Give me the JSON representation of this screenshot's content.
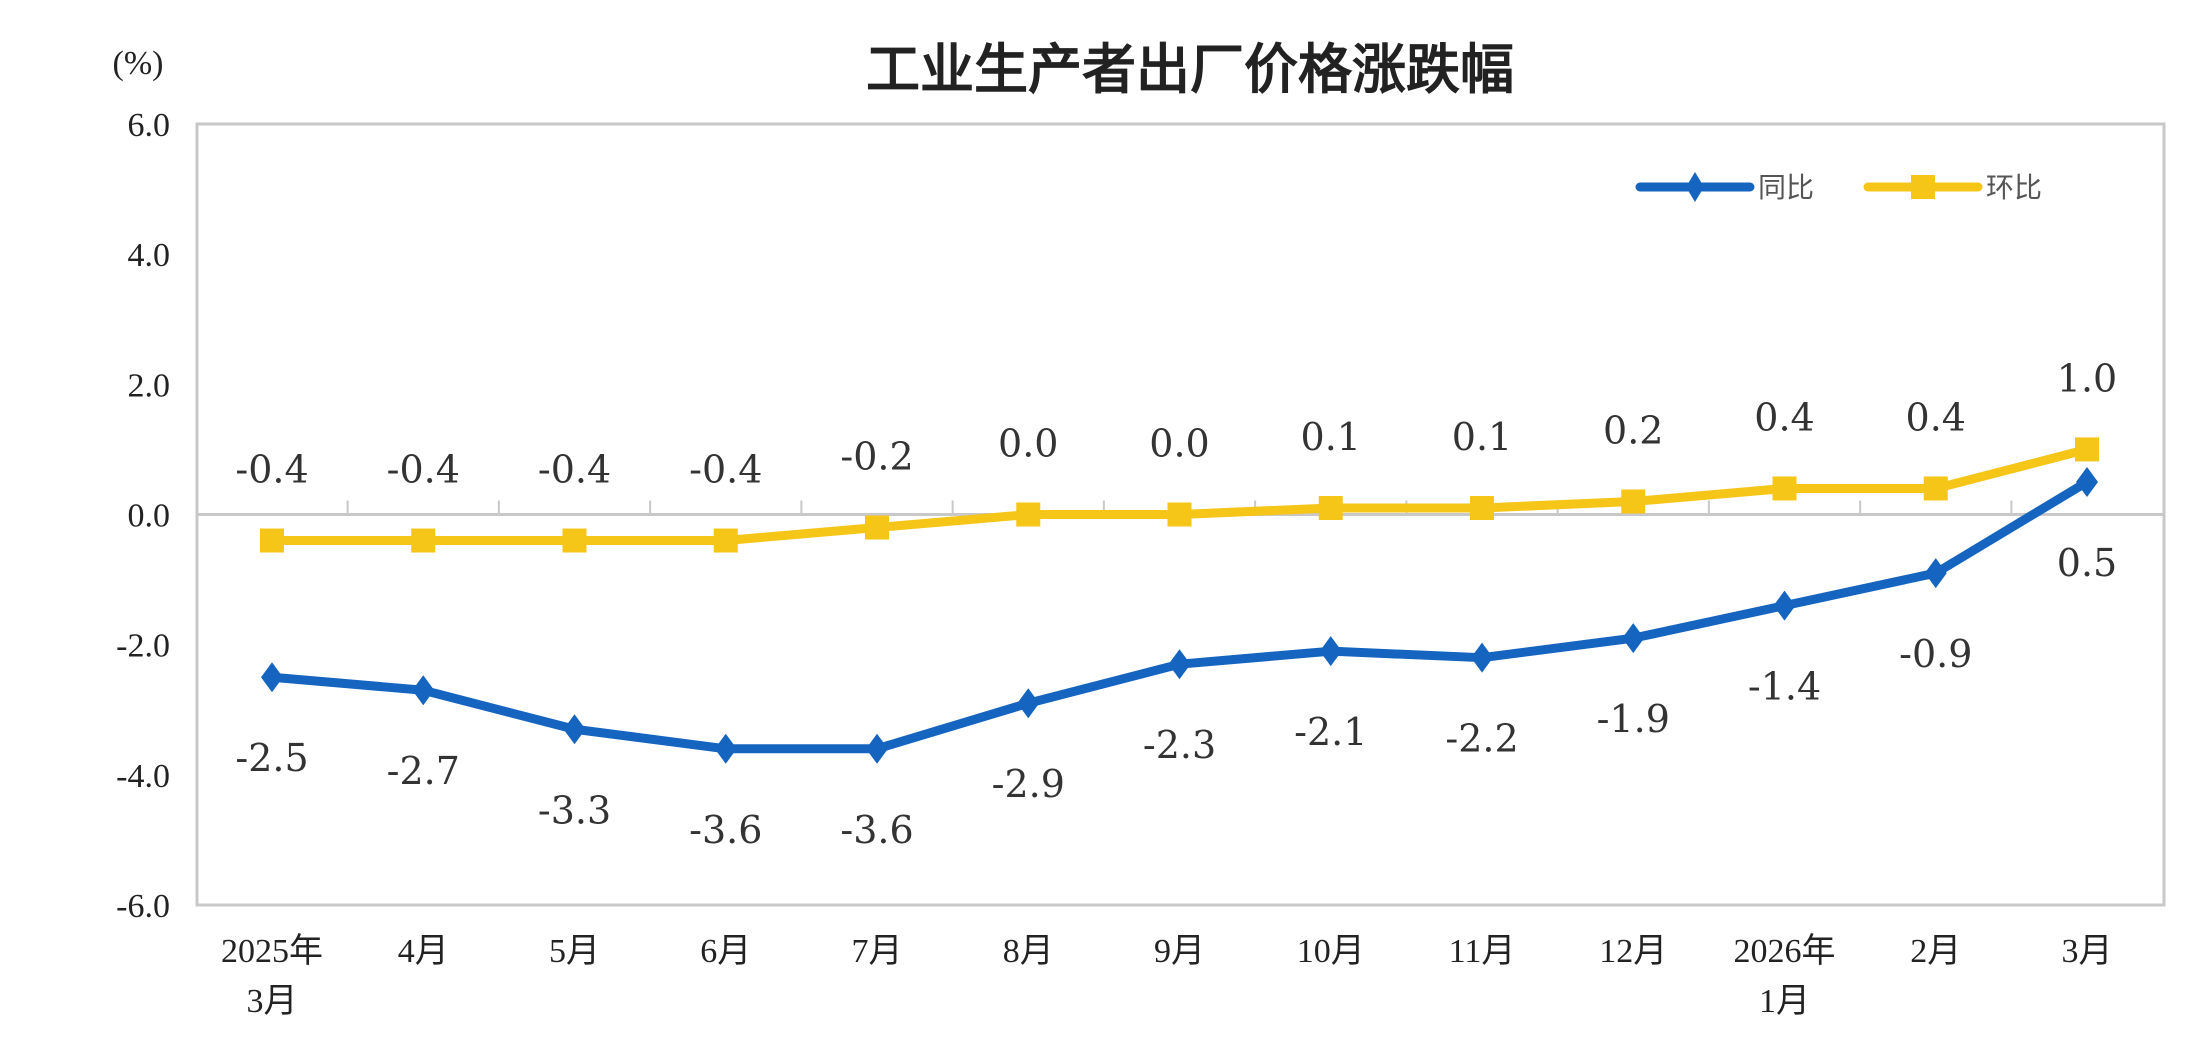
{
  "chart_data": {
    "type": "line",
    "title": "工业生产者出厂价格涨跌幅",
    "ylabel": "(%)",
    "xlabel": "",
    "ylim": [
      -6.0,
      6.0
    ],
    "yticks": [
      "6.0",
      "4.0",
      "2.0",
      "0.0",
      "-2.0",
      "-4.0",
      "-6.0"
    ],
    "ytick_values": [
      6,
      4,
      2,
      0,
      -2,
      -4,
      -6
    ],
    "grid": false,
    "legend_position": "top-right",
    "categories": [
      [
        "2025年",
        "3月"
      ],
      [
        "4月"
      ],
      [
        "5月"
      ],
      [
        "6月"
      ],
      [
        "7月"
      ],
      [
        "8月"
      ],
      [
        "9月"
      ],
      [
        "10月"
      ],
      [
        "11月"
      ],
      [
        "12月"
      ],
      [
        "2026年",
        "1月"
      ],
      [
        "2月"
      ],
      [
        "3月"
      ]
    ],
    "series": [
      {
        "name": "同比",
        "color": "#1565c0",
        "marker": "diamond",
        "values": [
          -2.5,
          -2.7,
          -3.3,
          -3.6,
          -3.6,
          -2.9,
          -2.3,
          -2.1,
          -2.2,
          -1.9,
          -1.4,
          -0.9,
          0.5
        ],
        "labels": [
          "-2.5",
          "-2.7",
          "-3.3",
          "-3.6",
          "-3.6",
          "-2.9",
          "-2.3",
          "-2.1",
          "-2.2",
          "-1.9",
          "-1.4",
          "-0.9",
          "0.5"
        ],
        "label_position": "below"
      },
      {
        "name": "环比",
        "color": "#f5c518",
        "marker": "square",
        "values": [
          -0.4,
          -0.4,
          -0.4,
          -0.4,
          -0.2,
          0.0,
          0.0,
          0.1,
          0.1,
          0.2,
          0.4,
          0.4,
          1.0
        ],
        "labels": [
          "-0.4",
          "-0.4",
          "-0.4",
          "-0.4",
          "-0.2",
          "0.0",
          "0.0",
          "0.1",
          "0.1",
          "0.2",
          "0.4",
          "0.4",
          "1.0"
        ],
        "label_position": "above"
      }
    ]
  }
}
